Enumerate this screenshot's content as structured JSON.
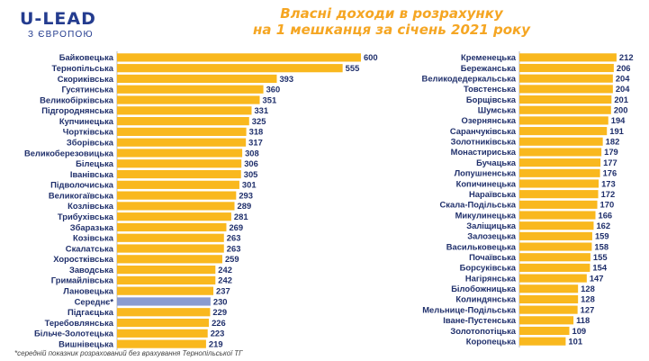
{
  "logo": {
    "main": "U-LEAD",
    "sub": "З ЄВРОПОЮ"
  },
  "title": {
    "line1": "Власні доходи в розрахунку",
    "line2": "на 1 мешканця за січень 2021 року"
  },
  "footnote": "*середній показник розрахований без врахування Тернопільської ТГ",
  "colors": {
    "bar": "#f9b81e",
    "highlight": "#8a9bd0",
    "title": "#f5a623",
    "logo": "#243c8f"
  },
  "chart_data": [
    {
      "type": "bar",
      "orientation": "horizontal",
      "title": "",
      "categories": [
        "Байковецька",
        "Тернопільська",
        "Скориківська",
        "Гусятинська",
        "Великобірківська",
        "Підгороднянська",
        "Купчинецька",
        "Чортківська",
        "Зборівська",
        "Великоберезовицька",
        "Білецька",
        "Іванівська",
        "Підволочиська",
        "Великогаївська",
        "Козлівська",
        "Трибухівська",
        "Збаразька",
        "Козівська",
        "Скалатська",
        "Хоростківська",
        "Заводська",
        "Гримайлівська",
        "Лановецька",
        "Середнє*",
        "Підгаєцька",
        "Теребовлянська",
        "Більче-Золотецька",
        "Вишнівецька"
      ],
      "values": [
        600,
        555,
        393,
        360,
        351,
        331,
        325,
        318,
        317,
        308,
        306,
        305,
        301,
        293,
        289,
        281,
        269,
        263,
        263,
        259,
        242,
        242,
        237,
        230,
        229,
        226,
        223,
        219
      ],
      "highlight_index": 23,
      "xlim": [
        0,
        620
      ]
    },
    {
      "type": "bar",
      "orientation": "horizontal",
      "title": "",
      "categories": [
        "Кременецька",
        "Бережанська",
        "Великодедеркальська",
        "Товстенська",
        "Борщівська",
        "Шумська",
        "Озернянська",
        "Саранчуківська",
        "Золотниківська",
        "Монастириська",
        "Бучацька",
        "Лопушненська",
        "Копичинецька",
        "Нараївська",
        "Скала-Подільська",
        "Микулинецька",
        "Заліщицька",
        "Залозецька",
        "Васильковецька",
        "Почаївська",
        "Борсуківська",
        "Нагірянська",
        "Білобожницька",
        "Колиндянська",
        "Мельнице-Подільська",
        "Іване-Пустенська",
        "Золотопотіцька",
        "Коропецька"
      ],
      "values": [
        212,
        206,
        204,
        204,
        201,
        200,
        194,
        191,
        182,
        179,
        177,
        176,
        173,
        172,
        170,
        166,
        162,
        159,
        158,
        155,
        154,
        147,
        128,
        128,
        127,
        118,
        109,
        101
      ],
      "xlim": [
        0,
        220
      ]
    }
  ]
}
